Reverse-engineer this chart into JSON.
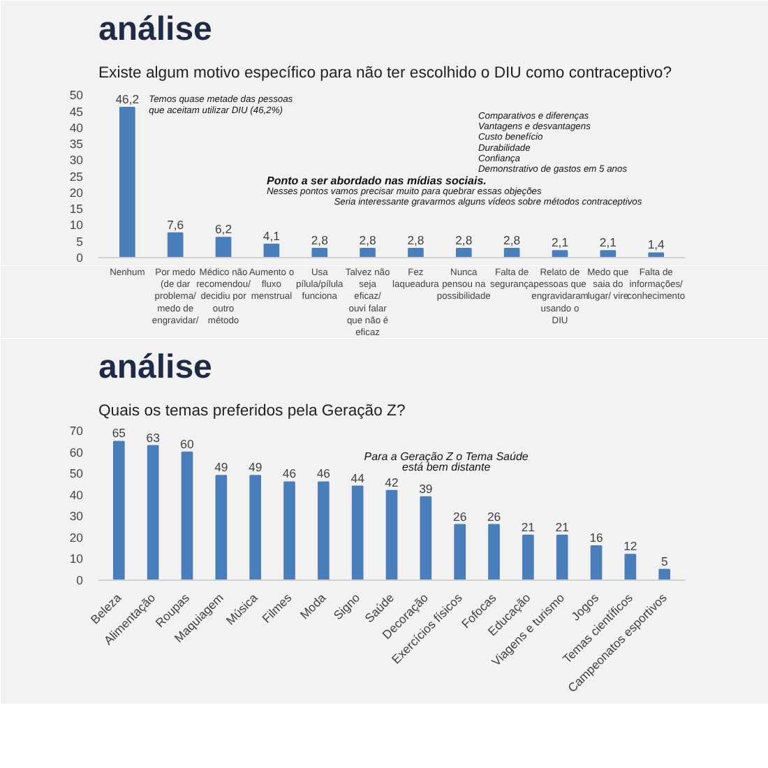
{
  "chart_data": [
    {
      "type": "bar",
      "title": "análise",
      "subtitle": "Existe algum motivo específico para não ter escolhido o DIU como contraceptivo?",
      "categories": [
        "Nenhum",
        "Por medo (de dar problema/ medo de engravidar/",
        "Médico não recomendou/ decidiu por outro método",
        "Aumento o fluxo menstrual",
        "Usa pílula/pílula funciona",
        "Talvez não seja eficaz/ ouvi falar que não é eficaz",
        "Fez laqueadura",
        "Nunca pensou na possibilidade",
        "Falta de segurança",
        "Relato de pessoas que engravidaram usando o DIU",
        "Medo que saia do lugar/ vire",
        "Falta de informações/ conhecimento"
      ],
      "values": [
        46.2,
        7.6,
        6.2,
        4.1,
        2.8,
        2.8,
        2.8,
        2.8,
        2.8,
        2.1,
        2.1,
        1.4
      ],
      "value_labels": [
        "46,2",
        "7,6",
        "6,2",
        "4,1",
        "2,8",
        "2,8",
        "2,8",
        "2,8",
        "2,8",
        "2,1",
        "2,1",
        "1,4"
      ],
      "color": "#4a7ebb",
      "ylim": [
        0,
        52
      ],
      "yticks": [
        0,
        5,
        10,
        15,
        20,
        25,
        30,
        35,
        40,
        45,
        50
      ],
      "annotations": [
        "Temos quase metade das pessoas\nque aceitam utilizar DIU (46,2%)",
        "Comparativos e diferenças\nVantagens e desvantagens\nCusto benefício\nDurabilidade\nConfiança\nDemonstrativo de gastos em 5 anos",
        "Ponto a ser abordado nas mídias sociais.",
        "Nesses pontos vamos precisar muito para quebrar essas objeções",
        "Seria interessante gravarmos alguns vídeos sobre métodos contraceptivos"
      ]
    },
    {
      "type": "bar",
      "title": "análise",
      "subtitle": "Quais os temas preferidos pela Geração Z?",
      "categories": [
        "Beleza",
        "Alimentação",
        "Roupas",
        "Maquiagem",
        "Música",
        "Filmes",
        "Moda",
        "Signo",
        "Saúde",
        "Decoração",
        "Exercícios físicos",
        "Fofocas",
        "Educação",
        "Viagens e turismo",
        "Jogos",
        "Temas científicos",
        "Campeonatos esportivos"
      ],
      "values": [
        65,
        63,
        60,
        49,
        49,
        46,
        46,
        44,
        42,
        39,
        26,
        26,
        21,
        21,
        16,
        12,
        5
      ],
      "data_labels": true,
      "color": "#4a7ebb",
      "ylim": [
        0,
        72
      ],
      "yticks": [
        0,
        10,
        20,
        30,
        40,
        50,
        60,
        70
      ],
      "annotations": [
        "Para a Geração Z o Tema Saúde\nestá bem distante"
      ]
    }
  ]
}
